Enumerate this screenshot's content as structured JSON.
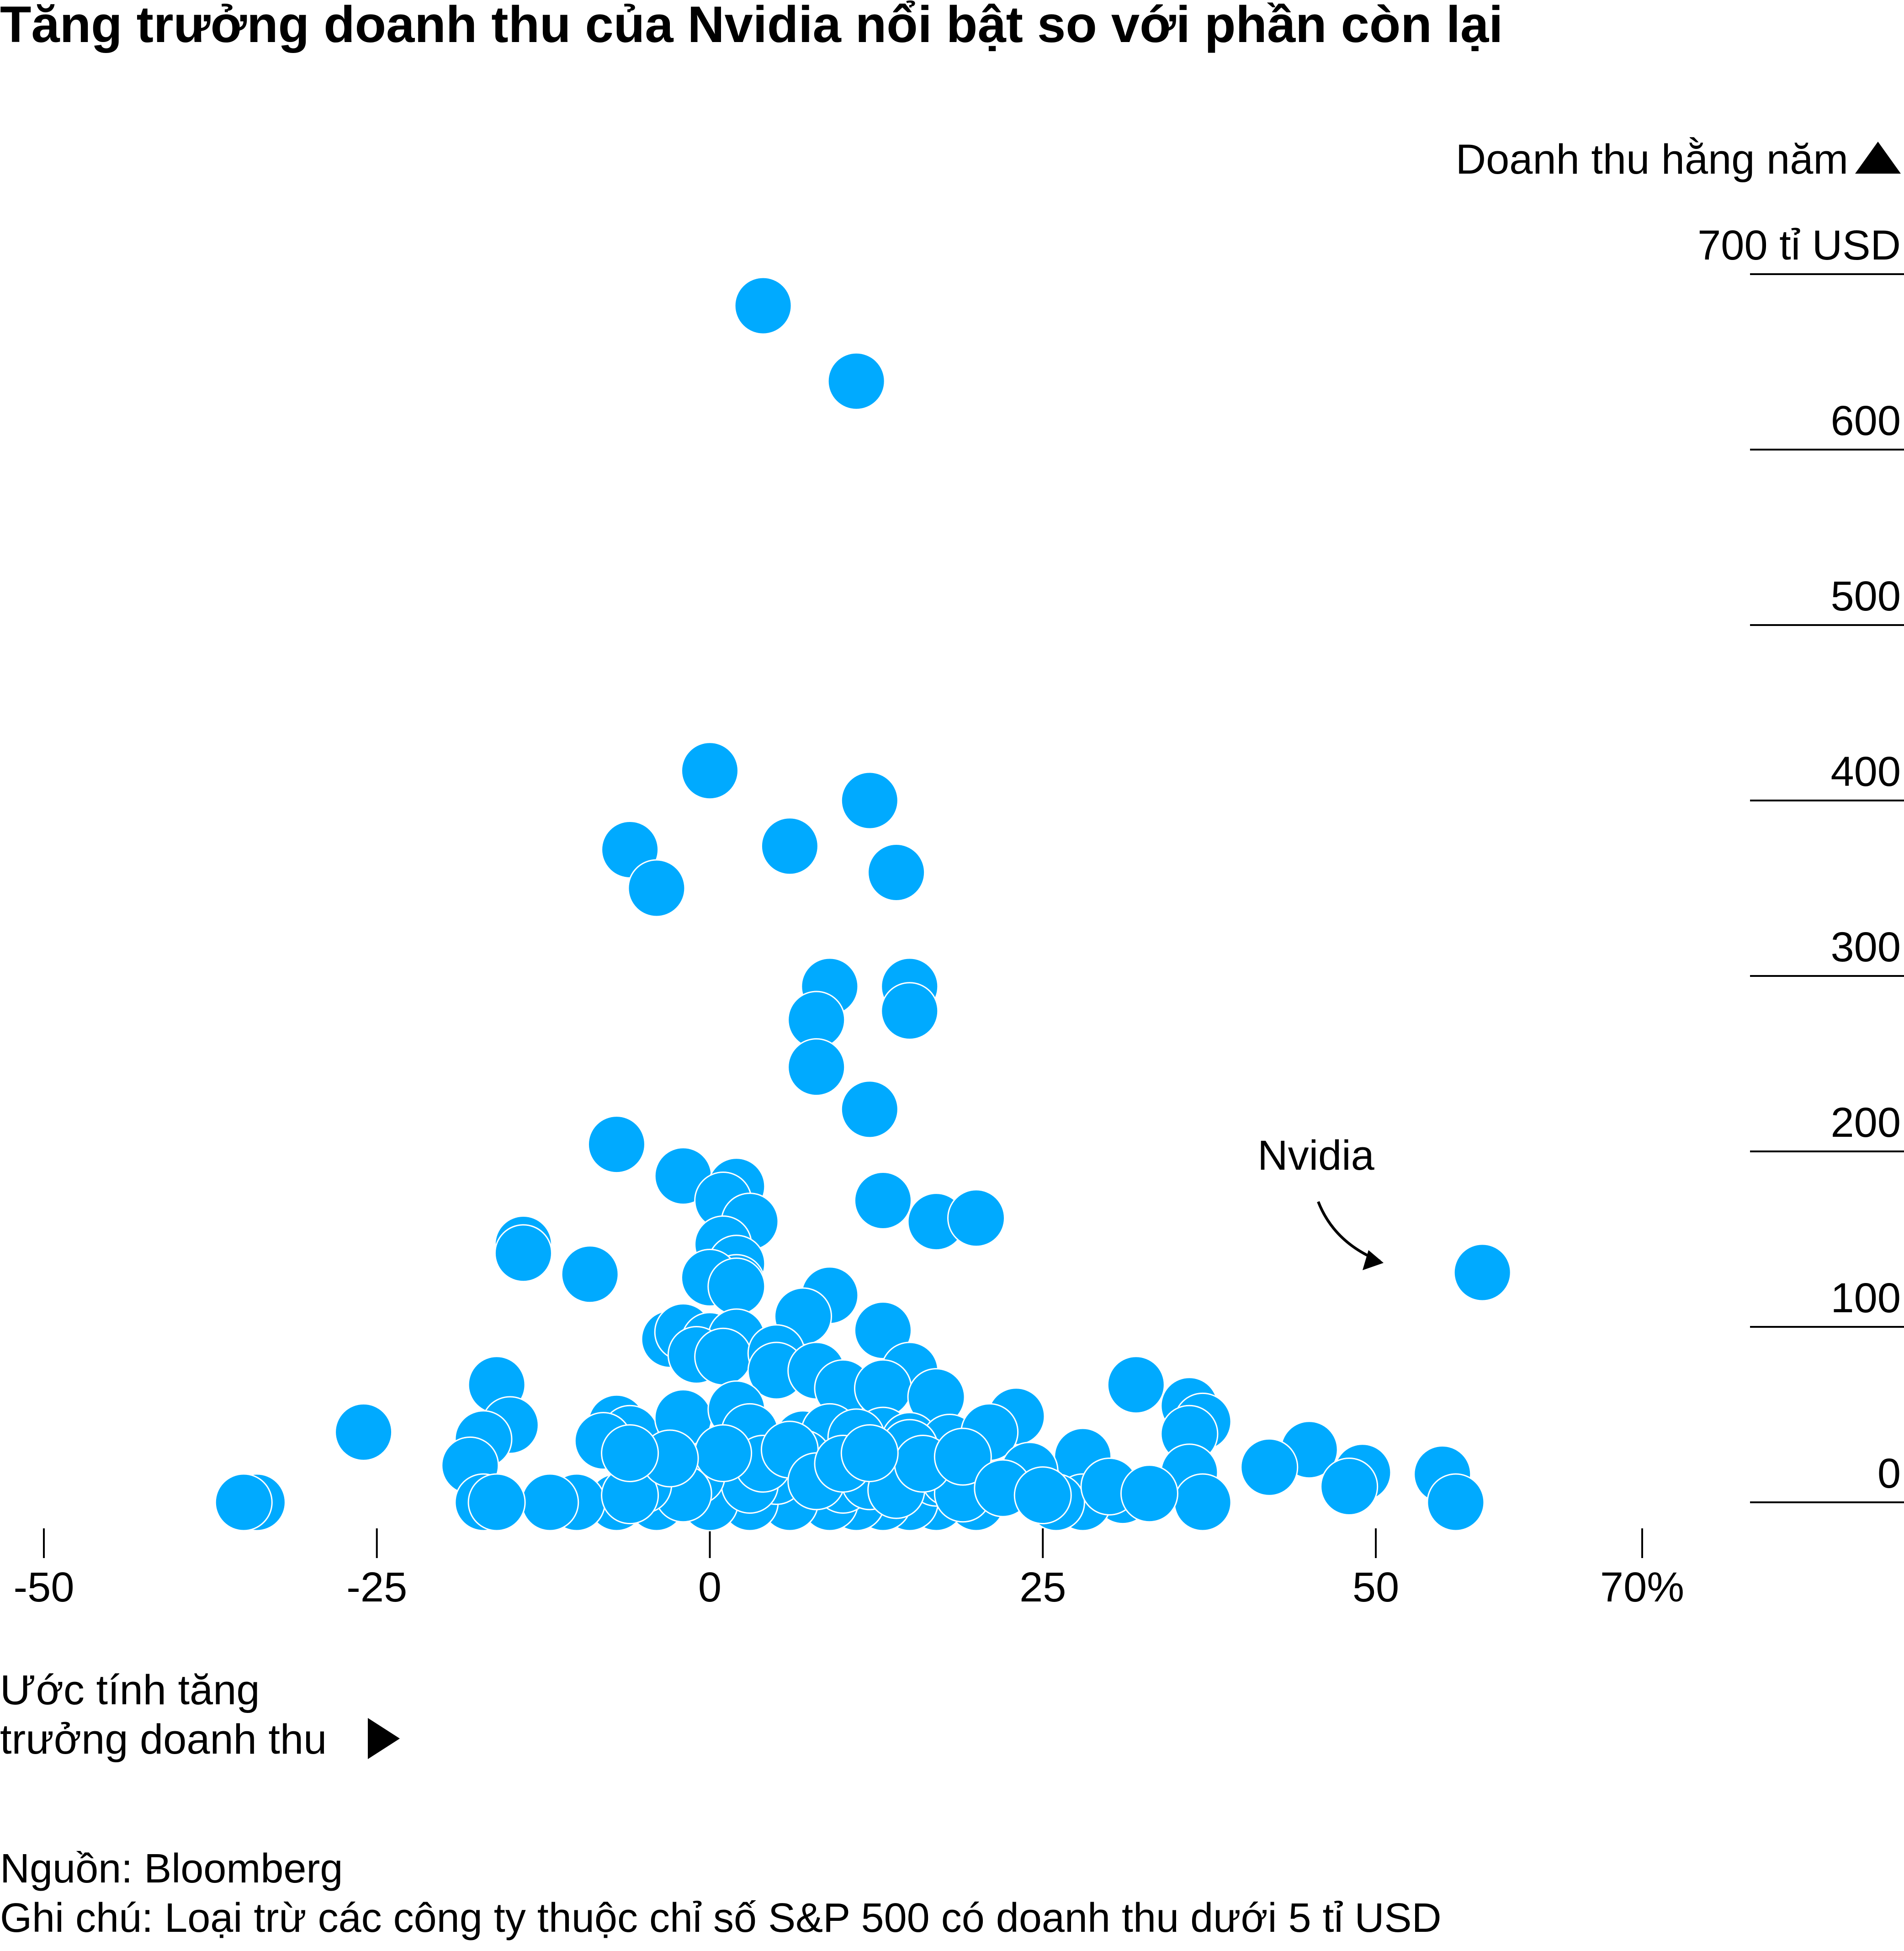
{
  "chart_data": {
    "type": "scatter",
    "title": "Tăng trưởng doanh thu của Nvidia nổi bật so với phần còn lại",
    "ylabel": "Doanh thu hằng năm",
    "xlabel_lines": [
      "Ước tính tăng",
      "trưởng doanh thu"
    ],
    "x_ticks": [
      -50,
      -25,
      0,
      25,
      50,
      70
    ],
    "x_tick_labels": [
      "-50",
      "-25",
      "0",
      "25",
      "50",
      "70%"
    ],
    "y_ticks": [
      0,
      100,
      200,
      300,
      400,
      500,
      600,
      700
    ],
    "y_tick_labels": [
      "0",
      "100",
      "200",
      "300",
      "400",
      "500",
      "600",
      "700 tỉ USD"
    ],
    "xlim": [
      -50,
      70
    ],
    "ylim": [
      0,
      700
    ],
    "annotation": {
      "label": "Nvidia",
      "x": 58,
      "y": 131
    },
    "color": "#00aaff",
    "points": [
      [
        4,
        682
      ],
      [
        11,
        639
      ],
      [
        0,
        417
      ],
      [
        12,
        400
      ],
      [
        -6,
        372
      ],
      [
        6,
        374
      ],
      [
        -4,
        350
      ],
      [
        14,
        359
      ],
      [
        9,
        294
      ],
      [
        15,
        294
      ],
      [
        8,
        275
      ],
      [
        15,
        280
      ],
      [
        8,
        248
      ],
      [
        12,
        224
      ],
      [
        -7,
        204
      ],
      [
        -2,
        186
      ],
      [
        2,
        180
      ],
      [
        1,
        172
      ],
      [
        13,
        172
      ],
      [
        3,
        160
      ],
      [
        17,
        160
      ],
      [
        20,
        162
      ],
      [
        -14,
        147
      ],
      [
        -14,
        142
      ],
      [
        1,
        147
      ],
      [
        2,
        136
      ],
      [
        2,
        125
      ],
      [
        -9,
        130
      ],
      [
        0,
        128
      ],
      [
        2,
        123
      ],
      [
        9,
        118
      ],
      [
        7,
        106
      ],
      [
        13,
        98
      ],
      [
        -3,
        93
      ],
      [
        -2,
        97
      ],
      [
        0,
        92
      ],
      [
        2,
        94
      ],
      [
        -1,
        84
      ],
      [
        1,
        83
      ],
      [
        5,
        85
      ],
      [
        5,
        75
      ],
      [
        8,
        75
      ],
      [
        15,
        75
      ],
      [
        10,
        65
      ],
      [
        13,
        65
      ],
      [
        -16,
        67
      ],
      [
        -15,
        44
      ],
      [
        32,
        67
      ],
      [
        36,
        55
      ],
      [
        37,
        46
      ],
      [
        36,
        39
      ],
      [
        17,
        60
      ],
      [
        23,
        49
      ],
      [
        -26,
        40
      ],
      [
        -17,
        36
      ],
      [
        -18,
        21
      ],
      [
        -7,
        45
      ],
      [
        -6,
        39
      ],
      [
        -8,
        35
      ],
      [
        -2,
        48
      ],
      [
        2,
        53
      ],
      [
        3,
        40
      ],
      [
        7,
        36
      ],
      [
        9,
        40
      ],
      [
        13,
        38
      ],
      [
        15,
        35
      ],
      [
        18,
        34
      ],
      [
        21,
        40
      ],
      [
        11,
        37
      ],
      [
        15,
        31
      ],
      [
        28,
        26
      ],
      [
        24,
        18
      ],
      [
        45,
        30
      ],
      [
        49,
        17
      ],
      [
        42,
        20
      ],
      [
        36,
        17
      ],
      [
        55,
        16
      ],
      [
        56,
        0
      ],
      [
        48,
        9
      ],
      [
        37,
        0
      ],
      [
        31,
        4
      ],
      [
        28,
        0
      ],
      [
        26,
        0
      ],
      [
        20,
        0
      ],
      [
        17,
        0
      ],
      [
        15,
        0
      ],
      [
        13,
        0
      ],
      [
        11,
        0
      ],
      [
        9,
        0
      ],
      [
        6,
        0
      ],
      [
        3,
        0
      ],
      [
        0,
        0
      ],
      [
        -4,
        0
      ],
      [
        -7,
        0
      ],
      [
        -10,
        0
      ],
      [
        -12,
        0
      ],
      [
        -17,
        0
      ],
      [
        -34,
        0
      ],
      [
        -35,
        0
      ],
      [
        17,
        14
      ],
      [
        18,
        14
      ],
      [
        19,
        5
      ],
      [
        7,
        25
      ],
      [
        5,
        15
      ],
      [
        3,
        10
      ],
      [
        -1,
        15
      ],
      [
        -2,
        5
      ],
      [
        -5,
        10
      ],
      [
        -6,
        4
      ],
      [
        10,
        10
      ],
      [
        12,
        12
      ],
      [
        14,
        7
      ],
      [
        4,
        22
      ],
      [
        1,
        28
      ],
      [
        6,
        30
      ],
      [
        8,
        12
      ],
      [
        10,
        22
      ],
      [
        16,
        22
      ],
      [
        19,
        26
      ],
      [
        22,
        8
      ],
      [
        -3,
        25
      ],
      [
        -6,
        28
      ],
      [
        30,
        9
      ],
      [
        33,
        5
      ],
      [
        25,
        4
      ],
      [
        12,
        28
      ],
      [
        -16,
        0
      ]
    ]
  },
  "footer": {
    "source": "Nguồn: Bloomberg",
    "note": "Ghi chú: Loại trừ các công ty thuộc chỉ số S&P 500 có doanh thu dưới 5 tỉ USD"
  }
}
